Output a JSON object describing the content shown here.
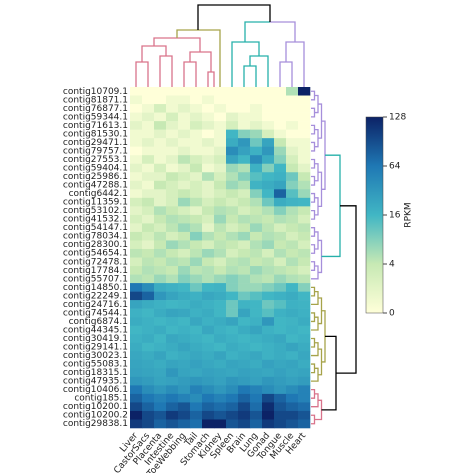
{
  "chart_data": {
    "type": "heatmap",
    "rows": [
      "contig10709.1",
      "contig81871.1",
      "contig76877.1",
      "contig59344.1",
      "contig71613.1",
      "contig81530.1",
      "contig29471.1",
      "contig79757.1",
      "contig27553.1",
      "contig59404.1",
      "contig25986.1",
      "contig47288.1",
      "contig6442.1",
      "contig11359.1",
      "contig53102.1",
      "contig41532.1",
      "contig54147.1",
      "contig78034.1",
      "contig28300.1",
      "contig54654.1",
      "contig72478.1",
      "contig17784.1",
      "contig55707.1",
      "contig14850.1",
      "contig22249.1",
      "contig24716.1",
      "contig74544.1",
      "contig6874.1",
      "contig44345.1",
      "contig30419.1",
      "contig29141.1",
      "contig30023.1",
      "contig55083.1",
      "contig18315.1",
      "contig47935.1",
      "contig10406.1",
      "contig185.1",
      "contig10200.1",
      "contig10200.2",
      "contig29838.1"
    ],
    "columns": [
      "Liver",
      "CastorSacs",
      "Placenta",
      "Intestine",
      "ToeWebbing",
      "Tail",
      "Stomach",
      "Kidney",
      "Spleen",
      "Brain",
      "Lung",
      "Gonad",
      "Tongue",
      "Muscle",
      "Heart"
    ],
    "values": [
      [
        0,
        0,
        0,
        0,
        0,
        0,
        0,
        0,
        0,
        0,
        0,
        0,
        0,
        6,
        128
      ],
      [
        1,
        0,
        0,
        1,
        1,
        0,
        1,
        0,
        0,
        0,
        0,
        0,
        0,
        0,
        0
      ],
      [
        0,
        1,
        3,
        1,
        2,
        1,
        0,
        1,
        0,
        0,
        1,
        0,
        0,
        0,
        0
      ],
      [
        1,
        2,
        1,
        3,
        1,
        2,
        1,
        0,
        2,
        1,
        1,
        0,
        0,
        0,
        0
      ],
      [
        2,
        1,
        4,
        2,
        1,
        3,
        2,
        1,
        3,
        1,
        2,
        1,
        0,
        1,
        0
      ],
      [
        1,
        1,
        2,
        1,
        2,
        1,
        0,
        1,
        16,
        10,
        8,
        3,
        1,
        0,
        0
      ],
      [
        1,
        2,
        1,
        2,
        1,
        1,
        2,
        1,
        24,
        40,
        12,
        30,
        4,
        1,
        1
      ],
      [
        0,
        1,
        1,
        1,
        2,
        1,
        1,
        2,
        48,
        32,
        20,
        40,
        8,
        2,
        1
      ],
      [
        1,
        3,
        1,
        2,
        5,
        3,
        2,
        3,
        30,
        16,
        48,
        24,
        10,
        3,
        1
      ],
      [
        2,
        1,
        3,
        1,
        2,
        4,
        1,
        2,
        8,
        6,
        20,
        10,
        16,
        4,
        2
      ],
      [
        1,
        2,
        2,
        4,
        3,
        2,
        6,
        3,
        6,
        10,
        14,
        16,
        20,
        12,
        4
      ],
      [
        2,
        1,
        4,
        3,
        2,
        3,
        2,
        4,
        8,
        6,
        18,
        24,
        30,
        10,
        6
      ],
      [
        1,
        2,
        2,
        3,
        4,
        3,
        2,
        3,
        4,
        3,
        10,
        16,
        80,
        14,
        8
      ],
      [
        3,
        4,
        2,
        3,
        8,
        5,
        3,
        4,
        3,
        4,
        6,
        12,
        24,
        18,
        16
      ],
      [
        2,
        3,
        6,
        4,
        3,
        2,
        4,
        6,
        5,
        3,
        4,
        6,
        10,
        6,
        4
      ],
      [
        3,
        2,
        4,
        6,
        5,
        4,
        3,
        8,
        4,
        6,
        5,
        4,
        6,
        5,
        3
      ],
      [
        2,
        4,
        3,
        5,
        8,
        6,
        2,
        5,
        3,
        4,
        8,
        5,
        3,
        4,
        5
      ],
      [
        4,
        3,
        5,
        3,
        4,
        10,
        6,
        4,
        6,
        8,
        4,
        6,
        5,
        3,
        4
      ],
      [
        3,
        2,
        4,
        8,
        6,
        4,
        3,
        5,
        4,
        3,
        6,
        8,
        4,
        5,
        3
      ],
      [
        5,
        4,
        6,
        4,
        3,
        5,
        8,
        6,
        3,
        4,
        5,
        3,
        6,
        4,
        5
      ],
      [
        3,
        5,
        4,
        6,
        5,
        8,
        4,
        3,
        5,
        6,
        4,
        5,
        3,
        6,
        4
      ],
      [
        4,
        6,
        5,
        4,
        8,
        5,
        6,
        4,
        6,
        5,
        8,
        6,
        5,
        4,
        3
      ],
      [
        6,
        5,
        8,
        6,
        10,
        8,
        6,
        8,
        10,
        8,
        6,
        5,
        8,
        6,
        5
      ],
      [
        64,
        48,
        24,
        20,
        16,
        12,
        16,
        18,
        10,
        8,
        8,
        10,
        12,
        16,
        10
      ],
      [
        100,
        80,
        40,
        30,
        24,
        20,
        28,
        24,
        16,
        12,
        14,
        16,
        20,
        24,
        16
      ],
      [
        30,
        24,
        20,
        16,
        18,
        24,
        20,
        16,
        12,
        18,
        16,
        12,
        14,
        20,
        18
      ],
      [
        20,
        16,
        24,
        30,
        28,
        20,
        24,
        16,
        12,
        30,
        16,
        14,
        20,
        24,
        20
      ],
      [
        24,
        20,
        16,
        20,
        16,
        28,
        20,
        24,
        30,
        16,
        20,
        40,
        16,
        18,
        24
      ],
      [
        16,
        20,
        24,
        16,
        20,
        16,
        28,
        20,
        16,
        24,
        30,
        20,
        16,
        20,
        16
      ],
      [
        20,
        24,
        16,
        28,
        24,
        20,
        16,
        24,
        20,
        16,
        20,
        24,
        28,
        16,
        20
      ],
      [
        24,
        16,
        20,
        24,
        30,
        24,
        20,
        16,
        24,
        20,
        16,
        20,
        24,
        30,
        24
      ],
      [
        28,
        24,
        30,
        20,
        24,
        28,
        24,
        30,
        20,
        24,
        28,
        20,
        24,
        20,
        28
      ],
      [
        30,
        28,
        24,
        30,
        28,
        32,
        28,
        24,
        30,
        28,
        24,
        32,
        28,
        30,
        24
      ],
      [
        32,
        30,
        28,
        40,
        30,
        28,
        32,
        30,
        28,
        32,
        30,
        28,
        32,
        28,
        30
      ],
      [
        40,
        36,
        30,
        32,
        36,
        40,
        36,
        32,
        40,
        36,
        32,
        40,
        36,
        32,
        36
      ],
      [
        64,
        48,
        40,
        48,
        40,
        56,
        48,
        40,
        48,
        64,
        56,
        48,
        40,
        48,
        56
      ],
      [
        80,
        64,
        56,
        64,
        56,
        48,
        64,
        56,
        64,
        80,
        64,
        100,
        80,
        64,
        56
      ],
      [
        100,
        80,
        64,
        80,
        90,
        64,
        80,
        72,
        80,
        100,
        72,
        120,
        90,
        80,
        72
      ],
      [
        128,
        100,
        90,
        110,
        100,
        80,
        100,
        90,
        100,
        110,
        90,
        128,
        100,
        100,
        90
      ],
      [
        110,
        100,
        80,
        90,
        80,
        70,
        128,
        128,
        90,
        100,
        80,
        110,
        100,
        90,
        80
      ]
    ],
    "colorbar_label": "RPKM",
    "zticks": [
      0,
      4,
      16,
      64,
      128
    ],
    "colors": [
      "#ffffd9",
      "#c7e9b4",
      "#41b6c4",
      "#1f78b4",
      "#0c2266"
    ]
  }
}
